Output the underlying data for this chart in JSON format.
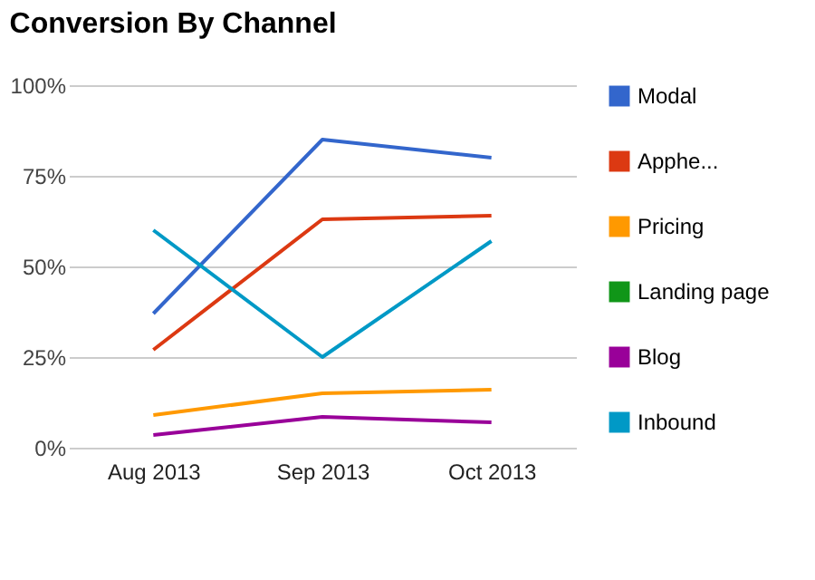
{
  "chart_data": {
    "type": "line",
    "title": "Conversion By Channel",
    "categories": [
      "Aug 2013",
      "Sep 2013",
      "Oct 2013"
    ],
    "series": [
      {
        "name": "Modal",
        "color": "#3366cc",
        "values": [
          37,
          85,
          80
        ]
      },
      {
        "name": "Apphe...",
        "color": "#dc3912",
        "values": [
          27,
          63,
          64
        ]
      },
      {
        "name": "Pricing",
        "color": "#ff9900",
        "values": [
          9,
          15,
          16
        ]
      },
      {
        "name": "Landing page",
        "color": "#109618",
        "values": [
          null,
          null,
          null
        ]
      },
      {
        "name": "Blog",
        "color": "#990099",
        "values": [
          3.5,
          8.5,
          7
        ]
      },
      {
        "name": "Inbound",
        "color": "#0099c6",
        "values": [
          60,
          25,
          57
        ]
      }
    ],
    "ylim": [
      0,
      100
    ],
    "yticks": [
      {
        "value": 0,
        "label": "0%"
      },
      {
        "value": 25,
        "label": "25%"
      },
      {
        "value": 50,
        "label": "50%"
      },
      {
        "value": 75,
        "label": "75%"
      },
      {
        "value": 100,
        "label": "100%"
      }
    ],
    "grid": "y",
    "legend": "right",
    "marker": "none",
    "line_style": "solid"
  }
}
